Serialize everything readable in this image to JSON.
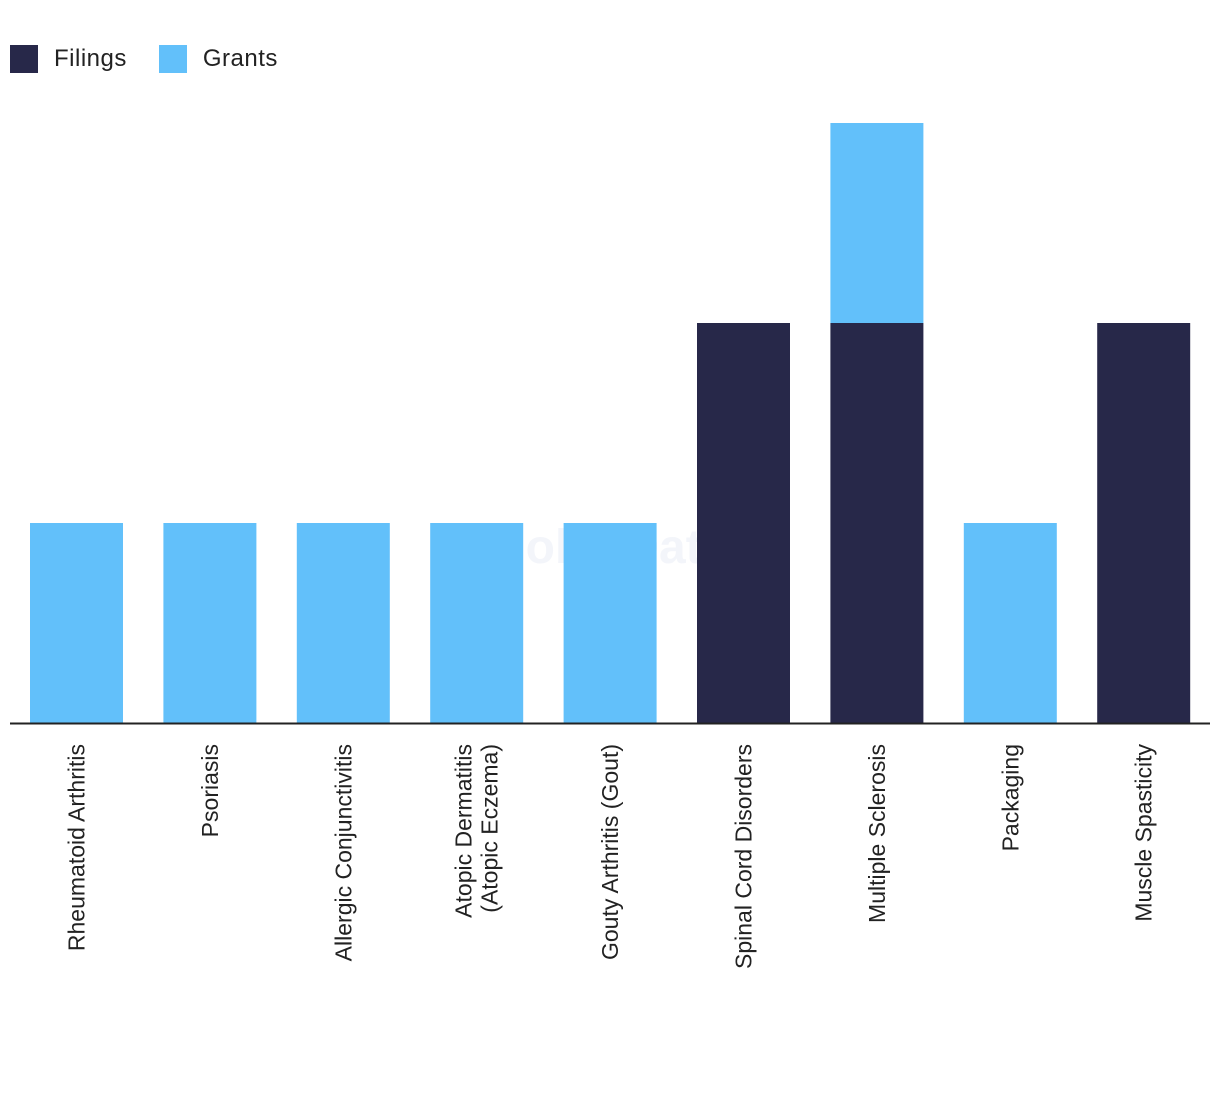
{
  "chart_data": {
    "type": "bar",
    "stacked": true,
    "categories": [
      "Rheumatoid Arthritis",
      "Psoriasis",
      "Allergic Conjunctivitis",
      "Atopic Dermatitis (Atopic Eczema)",
      "Gouty Arthritis (Gout)",
      "Spinal Cord Disorders",
      "Multiple Sclerosis",
      "Packaging",
      "Muscle Spasticity"
    ],
    "series": [
      {
        "name": "Filings",
        "color": "#272849",
        "values": [
          0,
          0,
          0,
          0,
          0,
          2,
          2,
          0,
          2
        ]
      },
      {
        "name": "Grants",
        "color": "#62c0fa",
        "values": [
          1,
          1,
          1,
          1,
          1,
          0,
          1,
          1,
          0
        ]
      }
    ],
    "ylim": [
      0,
      3
    ],
    "grid": false,
    "legend": "top-left",
    "watermark": "GlobalData"
  }
}
